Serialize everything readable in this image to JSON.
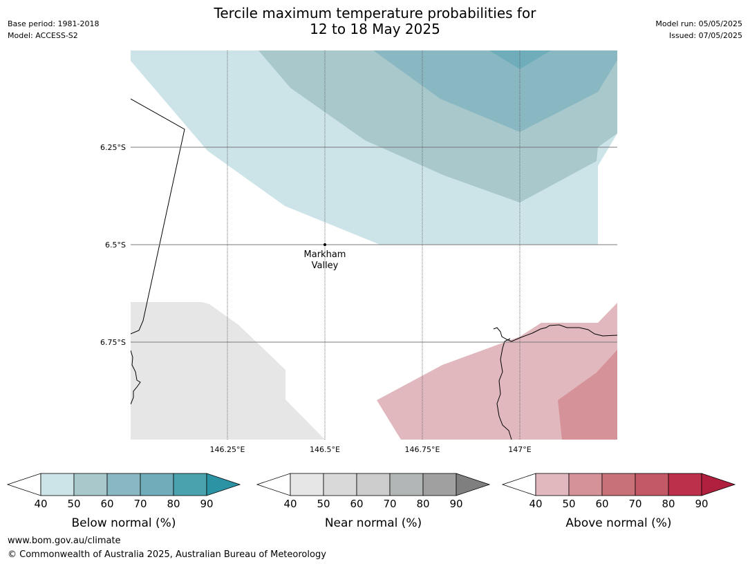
{
  "title_line1": "Tercile maximum temperature probabilities for",
  "title_line2": "12 to 18 May 2025",
  "base_period": "Base period: 1981-2018",
  "model": "Model: ACCESS-S2",
  "model_run": "Model run: 05/05/2025",
  "issued": "Issued: 07/05/2025",
  "lat_labels": [
    "6.25°S",
    "6.5°S",
    "6.75°S"
  ],
  "lon_labels": [
    "146.25°E",
    "146.5°E",
    "146.75°E",
    "147°E"
  ],
  "place": {
    "name_line1": "Markham",
    "name_line2": "Valley"
  },
  "legends": [
    {
      "label": "Below normal (%)",
      "ticks": [
        "40",
        "50",
        "60",
        "70",
        "80",
        "90"
      ],
      "colors": [
        "#cce3e8",
        "#a8c8cc",
        "#8ab8c2",
        "#6eadb9",
        "#4aa2af",
        "#2b93a4"
      ]
    },
    {
      "label": "Near normal (%)",
      "ticks": [
        "40",
        "50",
        "60",
        "70",
        "80",
        "90"
      ],
      "colors": [
        "#e6e6e6",
        "#d9d9d9",
        "#cccccc",
        "#b3b6b6",
        "#a0a0a0",
        "#7f7f7f"
      ]
    },
    {
      "label": "Above normal (%)",
      "ticks": [
        "40",
        "50",
        "60",
        "70",
        "80",
        "90"
      ],
      "colors": [
        "#e1b8bd",
        "#d59298",
        "#c97179",
        "#c35866",
        "#bc304b",
        "#b0203e"
      ]
    }
  ],
  "footer_url": "www.bom.gov.au/climate",
  "footer_copyright": "© Commonwealth of Australia 2025, Australian Bureau of Meteorology"
}
